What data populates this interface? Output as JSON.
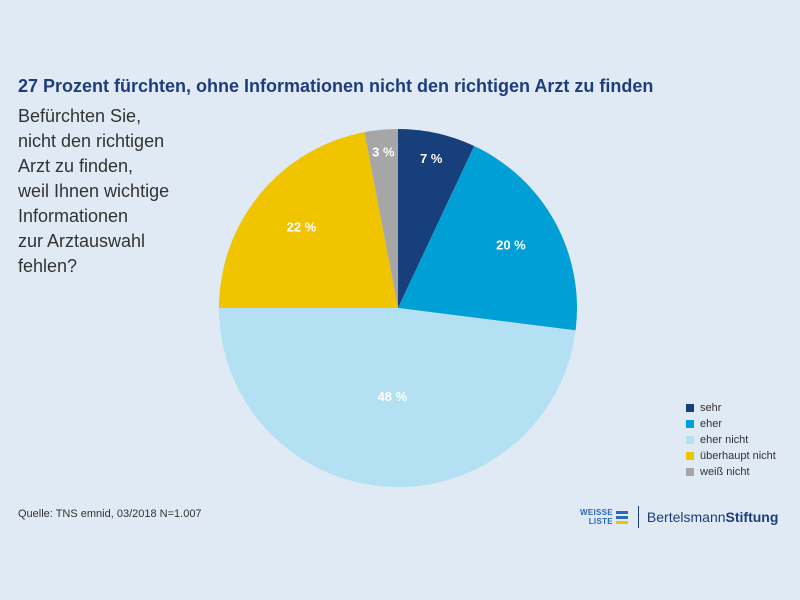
{
  "title": "27 Prozent fürchten, ohne Informationen nicht den richtigen Arzt zu finden",
  "question": "Befürchten Sie,\nnicht den richtigen\nArzt zu finden,\nweil Ihnen wichtige\nInformationen\nzur Arztauswahl\nfehlen?",
  "source": "Quelle: TNS emnid, 03/2018 N=1.007",
  "logos": {
    "weisse_line1": "WEISSE",
    "weisse_line2": "LISTE",
    "bertelsmann": "Bertelsmann",
    "stiftung": "Stiftung"
  },
  "chart_data": {
    "type": "pie",
    "title": "27 Prozent fürchten, ohne Informationen nicht den richtigen Arzt zu finden",
    "legend_position": "bottom-right",
    "slices": [
      {
        "label": "sehr",
        "value": 7,
        "display": "7 %",
        "color": "#163f7c",
        "label_color": "#ffffff"
      },
      {
        "label": "eher",
        "value": 20,
        "display": "20 %",
        "color": "#00a0d6",
        "label_color": "#ffffff"
      },
      {
        "label": "eher nicht",
        "value": 48,
        "display": "48 %",
        "color": "#b3e0f2",
        "label_color": "#ffffff"
      },
      {
        "label": "überhaupt nicht",
        "value": 22,
        "display": "22 %",
        "color": "#f0c400",
        "label_color": "#ffffff"
      },
      {
        "label": "weiß nicht",
        "value": 3,
        "display": "3 %",
        "color": "#a6a6a6",
        "label_color": "#ffffff"
      }
    ]
  }
}
